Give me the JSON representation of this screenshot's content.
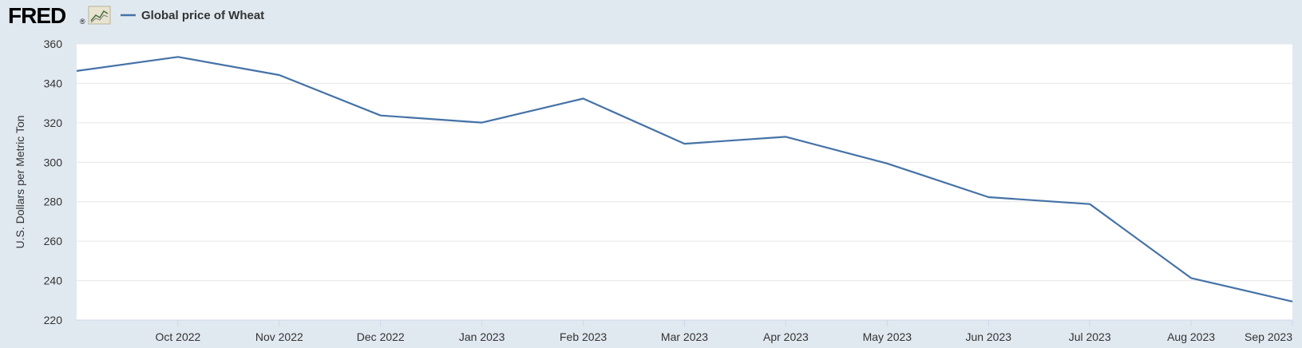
{
  "header": {
    "logo_text": "FRED",
    "logo_mark": "®",
    "graph_icon": "line-graph-icon"
  },
  "legend": {
    "label": "Global price of Wheat",
    "color": "#4572a7"
  },
  "colors": {
    "background": "#e1e9f0",
    "plot_background": "#ffffff",
    "gridline": "#e6e6e6",
    "series": "#4572a7",
    "text": "#333333"
  },
  "chart_data": {
    "type": "line",
    "title": "",
    "xlabel": "",
    "ylabel": "U.S. Dollars per Metric Ton",
    "ylim": [
      220,
      360
    ],
    "yticks": [
      220,
      240,
      260,
      280,
      300,
      320,
      340,
      360
    ],
    "grid": true,
    "legend_position": "top-left",
    "xrange": [
      "2022-09",
      "2023-09"
    ],
    "xticks": [
      {
        "date": "2022-10",
        "label": "Oct 2022"
      },
      {
        "date": "2022-11",
        "label": "Nov 2022"
      },
      {
        "date": "2022-12",
        "label": "Dec 2022"
      },
      {
        "date": "2023-01",
        "label": "Jan 2023"
      },
      {
        "date": "2023-02",
        "label": "Feb 2023"
      },
      {
        "date": "2023-03",
        "label": "Mar 2023"
      },
      {
        "date": "2023-04",
        "label": "Apr 2023"
      },
      {
        "date": "2023-05",
        "label": "May 2023"
      },
      {
        "date": "2023-06",
        "label": "Jun 2023"
      },
      {
        "date": "2023-07",
        "label": "Jul 2023"
      },
      {
        "date": "2023-08",
        "label": "Aug 2023"
      },
      {
        "date": "2023-09",
        "label": "Sep 2023"
      }
    ],
    "series": [
      {
        "name": "Global price of Wheat",
        "x": [
          "2022-09",
          "2022-10",
          "2022-11",
          "2022-12",
          "2023-01",
          "2023-02",
          "2023-03",
          "2023-04",
          "2023-05",
          "2023-06",
          "2023-07",
          "2023-08",
          "2023-09"
        ],
        "values": [
          346.3,
          353.4,
          344.2,
          323.7,
          320.1,
          332.3,
          309.4,
          312.9,
          299.4,
          282.3,
          278.8,
          241.3,
          229.4
        ]
      }
    ]
  }
}
